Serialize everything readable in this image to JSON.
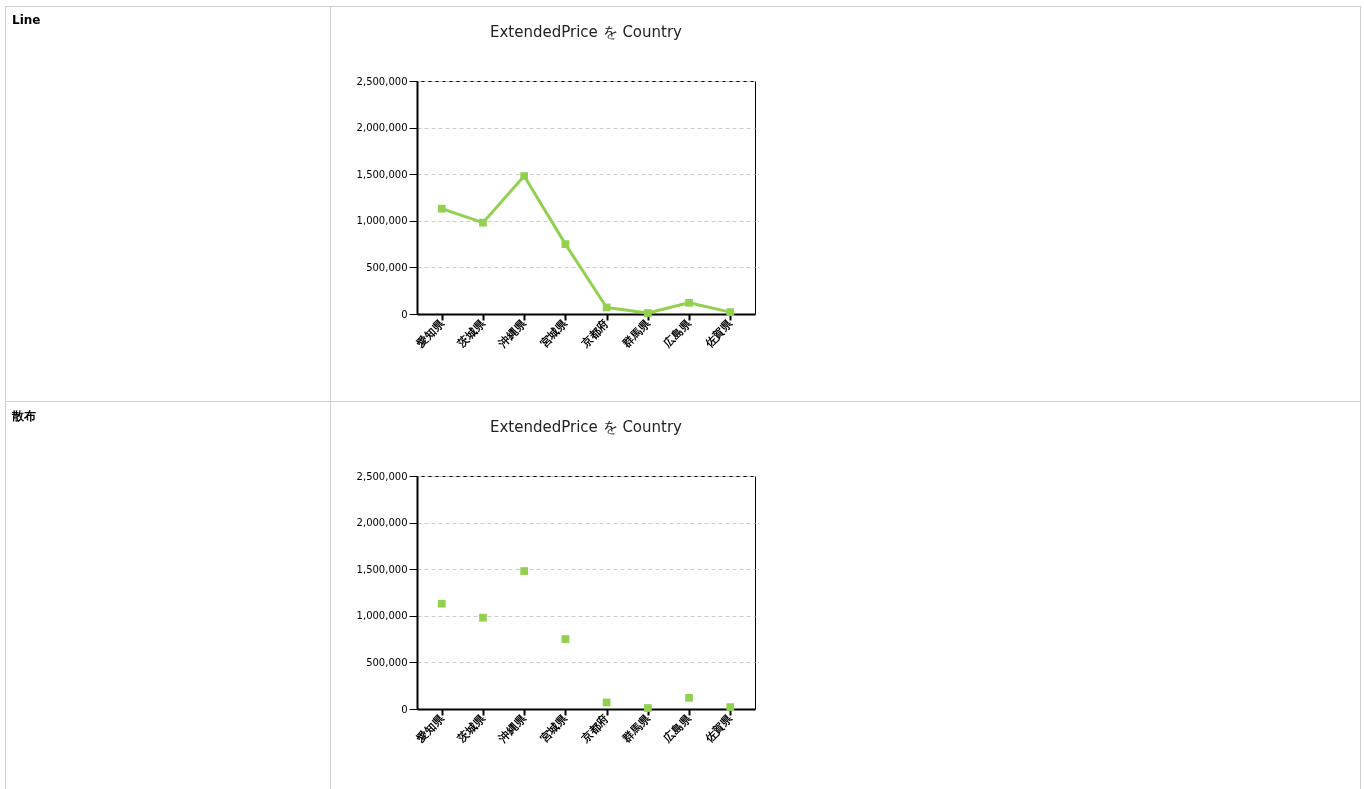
{
  "chart_data": [
    {
      "type": "line",
      "title": "ExtendedPrice を Country",
      "annotations": [
        "Line"
      ],
      "categories": [
        "愛知県",
        "茨城県",
        "沖縄県",
        "宮城県",
        "京都府",
        "群馬県",
        "広島県",
        "佐賀県"
      ],
      "series": [
        {
          "color": "#92d050",
          "values": [
            1130000,
            980000,
            1480000,
            750000,
            70000,
            10000,
            120000,
            20000
          ]
        }
      ],
      "ylim": [
        0,
        2500000
      ],
      "yticks": [
        0,
        {
          "value": 500000,
          "label": "500,000"
        },
        {
          "value": 1000000,
          "label": "1,000,000"
        },
        {
          "value": 1500000,
          "label": "1,500,000"
        },
        {
          "value": 2000000,
          "label": "2,000,000"
        },
        {
          "value": 2500000,
          "label": "2,500,000"
        }
      ],
      "grid": "y",
      "marker": "square",
      "line_style": "solid"
    },
    {
      "type": "scatter",
      "title": "ExtendedPrice を Country",
      "annotations": [
        "散布"
      ],
      "categories": [
        "愛知県",
        "茨城県",
        "沖縄県",
        "宮城県",
        "京都府",
        "群馬県",
        "広島県",
        "佐賀県"
      ],
      "series": [
        {
          "color": "#92d050",
          "values": [
            1130000,
            980000,
            1480000,
            750000,
            70000,
            10000,
            120000,
            20000
          ]
        }
      ],
      "ylim": [
        0,
        2500000
      ],
      "yticks": [
        0,
        {
          "value": 500000,
          "label": "500,000"
        },
        {
          "value": 1000000,
          "label": "1,000,000"
        },
        {
          "value": 1500000,
          "label": "1,500,000"
        },
        {
          "value": 2000000,
          "label": "2,000,000"
        },
        {
          "value": 2500000,
          "label": "2,500,000"
        }
      ],
      "grid": "y",
      "marker": "square"
    }
  ]
}
